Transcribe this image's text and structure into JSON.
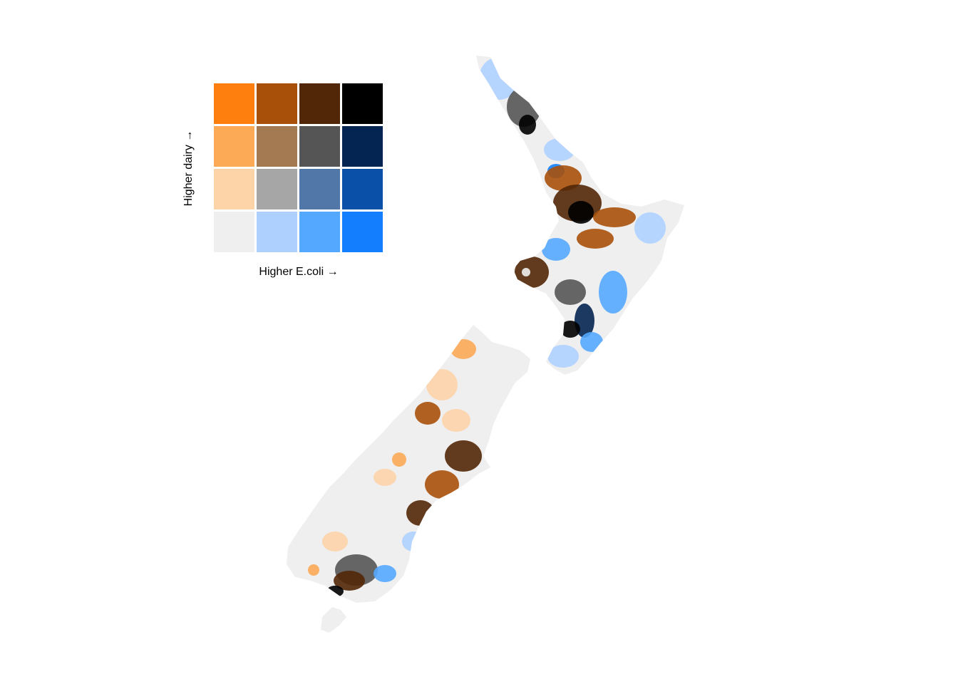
{
  "legend": {
    "x_label": "Higher E.coli →",
    "y_label": "Higher dairy →",
    "colors": [
      [
        "#ff7f0e",
        "#a8500a",
        "#522707",
        "#000000"
      ],
      [
        "#fcaa55",
        "#a47a52",
        "#555555",
        "#042552"
      ],
      [
        "#fdd3a8",
        "#a6a6a6",
        "#5177a8",
        "#0a4fa8"
      ],
      [
        "#efefef",
        "#aed0ff",
        "#55a8ff",
        "#137ffe"
      ]
    ]
  },
  "map": {
    "regions": [
      "north-island",
      "south-island",
      "stewart-island"
    ],
    "colors": {
      "base": "#efefef",
      "light_blue": "#aed0ff",
      "mid_blue": "#55a8ff",
      "blue": "#137ffe",
      "dark_blue": "#042552",
      "light_orange": "#fdd3a8",
      "orange": "#fcaa55",
      "brown": "#a8500a",
      "dark_brown": "#522707",
      "grey": "#555555",
      "black": "#000000"
    }
  }
}
